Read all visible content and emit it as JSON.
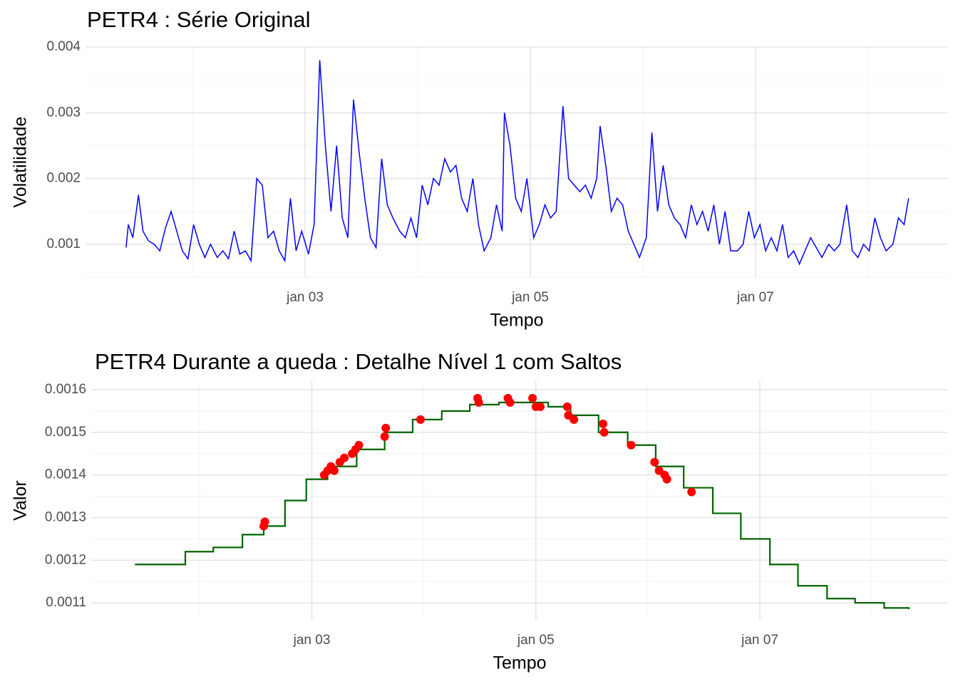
{
  "chart_data": [
    {
      "type": "line",
      "title": "PETR4 : Série Original",
      "x_label": "Tempo",
      "y_label": "Volatilidade",
      "color": "#0000ff",
      "x": [
        2001.41,
        2001.43,
        2001.47,
        2001.52,
        2001.56,
        2001.61,
        2001.66,
        2001.71,
        2001.76,
        2001.81,
        2001.86,
        2001.91,
        2001.96,
        2002.01,
        2002.06,
        2002.11,
        2002.16,
        2002.22,
        2002.27,
        2002.32,
        2002.37,
        2002.42,
        2002.47,
        2002.52,
        2002.57,
        2002.62,
        2002.67,
        2002.72,
        2002.77,
        2002.82,
        2002.87,
        2002.92,
        2002.97,
        2003.03,
        2003.08,
        2003.13,
        2003.18,
        2003.23,
        2003.28,
        2003.33,
        2003.38,
        2003.43,
        2003.48,
        2003.53,
        2003.58,
        2003.63,
        2003.68,
        2003.73,
        2003.78,
        2003.84,
        2003.89,
        2003.94,
        2003.99,
        2004.04,
        2004.09,
        2004.14,
        2004.19,
        2004.24,
        2004.29,
        2004.34,
        2004.39,
        2004.44,
        2004.49,
        2004.54,
        2004.59,
        2004.65,
        2004.7,
        2004.75,
        2004.77,
        2004.82,
        2004.87,
        2004.92,
        2004.97,
        2005.03,
        2005.08,
        2005.13,
        2005.18,
        2005.23,
        2005.29,
        2005.34,
        2005.39,
        2005.44,
        2005.49,
        2005.54,
        2005.59,
        2005.62,
        2005.67,
        2005.72,
        2005.77,
        2005.82,
        2005.87,
        2005.92,
        2005.97,
        2006.03,
        2006.08,
        2006.13,
        2006.18,
        2006.23,
        2006.28,
        2006.33,
        2006.38,
        2006.43,
        2006.48,
        2006.53,
        2006.58,
        2006.63,
        2006.68,
        2006.73,
        2006.78,
        2006.84,
        2006.89,
        2006.94,
        2006.99,
        2007.04,
        2007.09,
        2007.14,
        2007.19,
        2007.24,
        2007.29,
        2007.34,
        2007.39,
        2007.44,
        2007.49,
        2007.54,
        2007.59,
        2007.65,
        2007.7,
        2007.75,
        2007.81,
        2007.86,
        2007.91,
        2007.96,
        2008.01,
        2008.06,
        2008.11,
        2008.16,
        2008.22,
        2008.27,
        2008.32,
        2008.36
      ],
      "values": [
        0.00095,
        0.0013,
        0.0011,
        0.00175,
        0.0012,
        0.00105,
        0.001,
        0.0009,
        0.00125,
        0.0015,
        0.0012,
        0.0009,
        0.00078,
        0.0013,
        0.001,
        0.0008,
        0.001,
        0.0008,
        0.0009,
        0.00078,
        0.0012,
        0.00085,
        0.0009,
        0.00075,
        0.002,
        0.0019,
        0.0011,
        0.0012,
        0.0009,
        0.00075,
        0.0017,
        0.0009,
        0.0012,
        0.00085,
        0.0013,
        0.0038,
        0.0025,
        0.0015,
        0.0025,
        0.0014,
        0.0011,
        0.0032,
        0.0024,
        0.0017,
        0.0011,
        0.00095,
        0.0023,
        0.0016,
        0.0014,
        0.0012,
        0.0011,
        0.0014,
        0.0011,
        0.0019,
        0.0016,
        0.002,
        0.0019,
        0.0023,
        0.0021,
        0.0022,
        0.0017,
        0.0015,
        0.002,
        0.0013,
        0.0009,
        0.0011,
        0.0016,
        0.0012,
        0.003,
        0.0025,
        0.0017,
        0.0015,
        0.002,
        0.0011,
        0.0013,
        0.0016,
        0.0014,
        0.0015,
        0.0031,
        0.002,
        0.0019,
        0.0018,
        0.0019,
        0.0017,
        0.002,
        0.0028,
        0.0022,
        0.0015,
        0.0017,
        0.0016,
        0.0012,
        0.001,
        0.0008,
        0.0011,
        0.0027,
        0.0015,
        0.0022,
        0.0016,
        0.0014,
        0.0013,
        0.0011,
        0.0016,
        0.0013,
        0.0015,
        0.0012,
        0.0016,
        0.001,
        0.0015,
        0.0009,
        0.0009,
        0.001,
        0.0015,
        0.0011,
        0.0013,
        0.0009,
        0.0011,
        0.0009,
        0.0013,
        0.0008,
        0.0009,
        0.0007,
        0.0009,
        0.0011,
        0.00095,
        0.0008,
        0.001,
        0.0009,
        0.001,
        0.0016,
        0.0009,
        0.0008,
        0.001,
        0.0009,
        0.0014,
        0.0011,
        0.0009,
        0.001,
        0.0014,
        0.0013,
        0.0017
      ],
      "xlim": [
        2001.05,
        2008.71
      ],
      "xticks": [
        {
          "value": 2003,
          "label": "jan 03"
        },
        {
          "value": 2005,
          "label": "jan 05"
        },
        {
          "value": 2007,
          "label": "jan 07"
        }
      ],
      "ylim": [
        0.0005,
        0.004
      ],
      "yticks": [
        0.001,
        0.002,
        0.003,
        0.004
      ],
      "grid": true
    },
    {
      "type": "line",
      "title": "PETR4 Durante a queda : Detalhe Nível 1 com Saltos",
      "x_label": "Tempo",
      "y_label": "Valor",
      "color": "#006400",
      "line_shape": "hv",
      "x": [
        2001.42,
        2001.87,
        2002.12,
        2002.38,
        2002.57,
        2002.76,
        2002.95,
        2003.14,
        2003.4,
        2003.65,
        2003.9,
        2004.16,
        2004.41,
        2004.67,
        2004.92,
        2005.11,
        2005.31,
        2005.56,
        2005.82,
        2006.07,
        2006.32,
        2006.58,
        2006.83,
        2007.09,
        2007.34,
        2007.6,
        2007.85,
        2008.11,
        2008.33
      ],
      "values": [
        0.00119,
        0.00122,
        0.00123,
        0.00126,
        0.00128,
        0.00134,
        0.00139,
        0.00142,
        0.00146,
        0.0015,
        0.00153,
        0.00155,
        0.001565,
        0.00157,
        0.00157,
        0.00156,
        0.00154,
        0.0015,
        0.00147,
        0.00142,
        0.00137,
        0.00131,
        0.00125,
        0.00119,
        0.00114,
        0.00111,
        0.0011,
        0.001088,
        0.001085
      ],
      "markers": {
        "color": "#ff0000",
        "x": [
          2002.57,
          2002.58,
          2003.11,
          2003.14,
          2003.17,
          2003.2,
          2003.25,
          2003.29,
          2003.36,
          2003.39,
          2003.42,
          2003.65,
          2003.66,
          2003.97,
          2004.48,
          2004.49,
          2004.75,
          2004.77,
          2004.97,
          2005.0,
          2005.04,
          2005.28,
          2005.29,
          2005.34,
          2005.6,
          2005.61,
          2005.85,
          2006.06,
          2006.1,
          2006.15,
          2006.17,
          2006.39
        ],
        "values": [
          0.00128,
          0.00129,
          0.0014,
          0.00141,
          0.00142,
          0.00141,
          0.00143,
          0.00144,
          0.00145,
          0.00146,
          0.00147,
          0.00149,
          0.00151,
          0.00153,
          0.00158,
          0.00157,
          0.00158,
          0.00157,
          0.00158,
          0.00156,
          0.00156,
          0.00156,
          0.00154,
          0.00153,
          0.00152,
          0.0015,
          0.00147,
          0.00143,
          0.00141,
          0.0014,
          0.00139,
          0.00136
        ]
      },
      "xlim": [
        2001.03,
        2008.68
      ],
      "xticks": [
        {
          "value": 2003,
          "label": "jan 03"
        },
        {
          "value": 2005,
          "label": "jan 05"
        },
        {
          "value": 2007,
          "label": "jan 07"
        }
      ],
      "ylim": [
        0.00106,
        0.00162
      ],
      "yticks": [
        0.0011,
        0.0012,
        0.0013,
        0.0014,
        0.0015,
        0.0016
      ],
      "grid": true
    }
  ]
}
